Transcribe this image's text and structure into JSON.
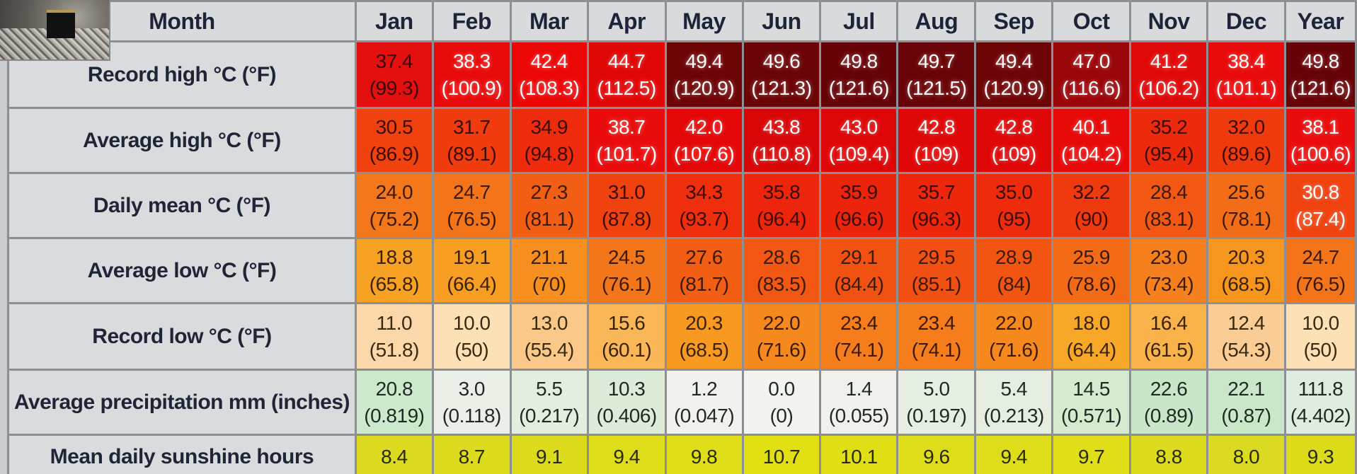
{
  "header": {
    "month": "Month",
    "months": [
      "Jan",
      "Feb",
      "Mar",
      "Apr",
      "May",
      "Jun",
      "Jul",
      "Aug",
      "Sep",
      "Oct",
      "Nov",
      "Dec"
    ],
    "year": "Year"
  },
  "rows": [
    {
      "id": "record-high",
      "label": "Record high °C (°F)",
      "cells": [
        {
          "v": "37.4",
          "f": "(99.3)",
          "bg": "#e41010",
          "fg": "#3a0505"
        },
        {
          "v": "38.3",
          "f": "(100.9)",
          "bg": "#e90b0b",
          "fg": "#ffffff"
        },
        {
          "v": "42.4",
          "f": "(108.3)",
          "bg": "#ec0707",
          "fg": "#ffffff"
        },
        {
          "v": "44.7",
          "f": "(112.5)",
          "bg": "#e00707",
          "fg": "#ffffff"
        },
        {
          "v": "49.4",
          "f": "(120.9)",
          "bg": "#6d0507",
          "fg": "#ffffff"
        },
        {
          "v": "49.6",
          "f": "(121.3)",
          "bg": "#6a0407",
          "fg": "#ffffff"
        },
        {
          "v": "49.8",
          "f": "(121.6)",
          "bg": "#660307",
          "fg": "#ffffff"
        },
        {
          "v": "49.7",
          "f": "(121.5)",
          "bg": "#680407",
          "fg": "#ffffff"
        },
        {
          "v": "49.4",
          "f": "(120.9)",
          "bg": "#6d0507",
          "fg": "#ffffff"
        },
        {
          "v": "47.0",
          "f": "(116.6)",
          "bg": "#9a0609",
          "fg": "#ffffff"
        },
        {
          "v": "41.2",
          "f": "(106.2)",
          "bg": "#e00909",
          "fg": "#ffffff"
        },
        {
          "v": "38.4",
          "f": "(101.1)",
          "bg": "#e90b0b",
          "fg": "#ffffff"
        }
      ],
      "year": {
        "v": "49.8",
        "f": "(121.6)",
        "bg": "#660307",
        "fg": "#ffffff"
      }
    },
    {
      "id": "average-high",
      "label": "Average high °C (°F)",
      "cells": [
        {
          "v": "30.5",
          "f": "(86.9)",
          "bg": "#f0420f",
          "fg": "#3a0a05"
        },
        {
          "v": "31.7",
          "f": "(89.1)",
          "bg": "#ef3b0e",
          "fg": "#3a0a05"
        },
        {
          "v": "34.9",
          "f": "(94.8)",
          "bg": "#ee2c0d",
          "fg": "#3a0a05"
        },
        {
          "v": "38.7",
          "f": "(101.7)",
          "bg": "#ea0c0c",
          "fg": "#ffffff"
        },
        {
          "v": "42.0",
          "f": "(107.6)",
          "bg": "#e40707",
          "fg": "#ffffff"
        },
        {
          "v": "43.8",
          "f": "(110.8)",
          "bg": "#d80606",
          "fg": "#ffffff"
        },
        {
          "v": "43.0",
          "f": "(109.4)",
          "bg": "#de0606",
          "fg": "#ffffff"
        },
        {
          "v": "42.8",
          "f": "(109)",
          "bg": "#df0707",
          "fg": "#ffffff"
        },
        {
          "v": "42.8",
          "f": "(109)",
          "bg": "#df0707",
          "fg": "#ffffff"
        },
        {
          "v": "40.1",
          "f": "(104.2)",
          "bg": "#e80909",
          "fg": "#ffffff"
        },
        {
          "v": "35.2",
          "f": "(95.4)",
          "bg": "#ee2a0d",
          "fg": "#3a0a05"
        },
        {
          "v": "32.0",
          "f": "(89.6)",
          "bg": "#ef3a0e",
          "fg": "#3a0a05"
        }
      ],
      "year": {
        "v": "38.1",
        "f": "(100.6)",
        "bg": "#ea0c0c",
        "fg": "#ffffff"
      }
    },
    {
      "id": "daily-mean",
      "label": "Daily mean °C (°F)",
      "cells": [
        {
          "v": "24.0",
          "f": "(75.2)",
          "bg": "#f4781b",
          "fg": "#3a1a08"
        },
        {
          "v": "24.7",
          "f": "(76.5)",
          "bg": "#f47419",
          "fg": "#3a1a08"
        },
        {
          "v": "27.3",
          "f": "(81.1)",
          "bg": "#f25e14",
          "fg": "#3a1a08"
        },
        {
          "v": "31.0",
          "f": "(87.8)",
          "bg": "#f0420f",
          "fg": "#3a0a05"
        },
        {
          "v": "34.3",
          "f": "(93.7)",
          "bg": "#ee2e0d",
          "fg": "#3a0a05"
        },
        {
          "v": "35.8",
          "f": "(96.4)",
          "bg": "#ed250c",
          "fg": "#3a0a05"
        },
        {
          "v": "35.9",
          "f": "(96.6)",
          "bg": "#ed240c",
          "fg": "#3a0a05"
        },
        {
          "v": "35.7",
          "f": "(96.3)",
          "bg": "#ed260c",
          "fg": "#3a0a05"
        },
        {
          "v": "35.0",
          "f": "(95)",
          "bg": "#ee2b0d",
          "fg": "#3a0a05"
        },
        {
          "v": "32.2",
          "f": "(90)",
          "bg": "#ef390e",
          "fg": "#3a0a05"
        },
        {
          "v": "28.4",
          "f": "(83.1)",
          "bg": "#f25813",
          "fg": "#3a1a08"
        },
        {
          "v": "25.6",
          "f": "(78.1)",
          "bg": "#f36c17",
          "fg": "#3a1a08"
        }
      ],
      "year": {
        "v": "30.8",
        "f": "(87.4)",
        "bg": "#f0430f",
        "fg": "#ffffff"
      }
    },
    {
      "id": "average-low",
      "label": "Average low °C (°F)",
      "cells": [
        {
          "v": "18.8",
          "f": "(65.8)",
          "bg": "#f8a224",
          "fg": "#3a2208"
        },
        {
          "v": "19.1",
          "f": "(66.4)",
          "bg": "#f89f23",
          "fg": "#3a2208"
        },
        {
          "v": "21.1",
          "f": "(70)",
          "bg": "#f78f20",
          "fg": "#3a2208"
        },
        {
          "v": "24.5",
          "f": "(76.1)",
          "bg": "#f4761a",
          "fg": "#3a1a08"
        },
        {
          "v": "27.6",
          "f": "(81.7)",
          "bg": "#f25e14",
          "fg": "#3a1a08"
        },
        {
          "v": "28.6",
          "f": "(83.5)",
          "bg": "#f25713",
          "fg": "#3a1a08"
        },
        {
          "v": "29.1",
          "f": "(84.4)",
          "bg": "#f15212",
          "fg": "#3a1a08"
        },
        {
          "v": "29.5",
          "f": "(85.1)",
          "bg": "#f15012",
          "fg": "#3a1a08"
        },
        {
          "v": "28.9",
          "f": "(84)",
          "bg": "#f25412",
          "fg": "#3a1a08"
        },
        {
          "v": "25.9",
          "f": "(78.6)",
          "bg": "#f36a17",
          "fg": "#3a1a08"
        },
        {
          "v": "23.0",
          "f": "(73.4)",
          "bg": "#f6801d",
          "fg": "#3a1a08"
        },
        {
          "v": "20.3",
          "f": "(68.5)",
          "bg": "#f7961f",
          "fg": "#3a2208"
        }
      ],
      "year": {
        "v": "24.7",
        "f": "(76.5)",
        "bg": "#f47419",
        "fg": "#3a1a08"
      }
    },
    {
      "id": "record-low",
      "label": "Record low °C (°F)",
      "cells": [
        {
          "v": "11.0",
          "f": "(51.8)",
          "bg": "#fbd8a9",
          "fg": "#3a2a10"
        },
        {
          "v": "10.0",
          "f": "(50)",
          "bg": "#fce0b6",
          "fg": "#3a2a10"
        },
        {
          "v": "13.0",
          "f": "(55.4)",
          "bg": "#fac98a",
          "fg": "#3a2a10"
        },
        {
          "v": "15.6",
          "f": "(60.1)",
          "bg": "#f9b757",
          "fg": "#3a2208"
        },
        {
          "v": "20.3",
          "f": "(68.5)",
          "bg": "#f89a22",
          "fg": "#3a2208"
        },
        {
          "v": "22.0",
          "f": "(71.6)",
          "bg": "#f6891e",
          "fg": "#3a1a08"
        },
        {
          "v": "23.4",
          "f": "(74.1)",
          "bg": "#f57d1c",
          "fg": "#3a1a08"
        },
        {
          "v": "23.4",
          "f": "(74.1)",
          "bg": "#f57d1c",
          "fg": "#3a1a08"
        },
        {
          "v": "22.0",
          "f": "(71.6)",
          "bg": "#f6891e",
          "fg": "#3a1a08"
        },
        {
          "v": "18.0",
          "f": "(64.4)",
          "bg": "#f8a829",
          "fg": "#3a2208"
        },
        {
          "v": "16.4",
          "f": "(61.5)",
          "bg": "#f9b34a",
          "fg": "#3a2208"
        },
        {
          "v": "12.4",
          "f": "(54.3)",
          "bg": "#fbcd96",
          "fg": "#3a2a10"
        }
      ],
      "year": {
        "v": "10.0",
        "f": "(50)",
        "bg": "#fce0b6",
        "fg": "#3a2a10"
      }
    },
    {
      "id": "average-precipitation",
      "label": "Average precipitation mm (inches)",
      "cells": [
        {
          "v": "20.8",
          "f": "(0.819)",
          "bg": "#cde9cc",
          "fg": "#1f2a22"
        },
        {
          "v": "3.0",
          "f": "(0.118)",
          "bg": "#eceee8",
          "fg": "#1f2a22"
        },
        {
          "v": "5.5",
          "f": "(0.217)",
          "bg": "#e4eedf",
          "fg": "#1f2a22"
        },
        {
          "v": "10.3",
          "f": "(0.406)",
          "bg": "#dcecd8",
          "fg": "#1f2a22"
        },
        {
          "v": "1.2",
          "f": "(0.047)",
          "bg": "#f1f1ed",
          "fg": "#1f2a22"
        },
        {
          "v": "0.0",
          "f": "(0)",
          "bg": "#f3f3f0",
          "fg": "#1f2a22"
        },
        {
          "v": "1.4",
          "f": "(0.055)",
          "bg": "#f0f1ec",
          "fg": "#1f2a22"
        },
        {
          "v": "5.0",
          "f": "(0.197)",
          "bg": "#e6efe1",
          "fg": "#1f2a22"
        },
        {
          "v": "5.4",
          "f": "(0.213)",
          "bg": "#e5eee0",
          "fg": "#1f2a22"
        },
        {
          "v": "14.5",
          "f": "(0.571)",
          "bg": "#d5eacf",
          "fg": "#1f2a22"
        },
        {
          "v": "22.6",
          "f": "(0.89)",
          "bg": "#c9e7c8",
          "fg": "#1f2a22"
        },
        {
          "v": "22.1",
          "f": "(0.87)",
          "bg": "#cae8c9",
          "fg": "#1f2a22"
        }
      ],
      "year": {
        "v": "111.8",
        "f": "(4.402)",
        "bg": "#dfece0",
        "fg": "#1f2a22"
      }
    },
    {
      "id": "sunshine-hours",
      "label": "Mean daily sunshine hours",
      "cells": [
        {
          "v": "8.4",
          "bg": "#dcdb20",
          "fg": "#2a2a06"
        },
        {
          "v": "8.7",
          "bg": "#dcdb1e",
          "fg": "#2a2a06"
        },
        {
          "v": "9.1",
          "bg": "#dddc1c",
          "fg": "#2a2a06"
        },
        {
          "v": "9.4",
          "bg": "#dedd1a",
          "fg": "#2a2a06"
        },
        {
          "v": "9.8",
          "bg": "#dfde18",
          "fg": "#2a2a06"
        },
        {
          "v": "10.7",
          "bg": "#e2e012",
          "fg": "#2a2a06"
        },
        {
          "v": "10.1",
          "bg": "#e0df16",
          "fg": "#2a2a06"
        },
        {
          "v": "9.6",
          "bg": "#dedd19",
          "fg": "#2a2a06"
        },
        {
          "v": "9.4",
          "bg": "#dedd1a",
          "fg": "#2a2a06"
        },
        {
          "v": "9.7",
          "bg": "#dfde18",
          "fg": "#2a2a06"
        },
        {
          "v": "8.8",
          "bg": "#dcdb1e",
          "fg": "#2a2a06"
        },
        {
          "v": "8.0",
          "bg": "#dbda22",
          "fg": "#2a2a06"
        }
      ],
      "year": {
        "v": "9.3",
        "bg": "#dddc1b",
        "fg": "#2a2a06"
      }
    }
  ]
}
